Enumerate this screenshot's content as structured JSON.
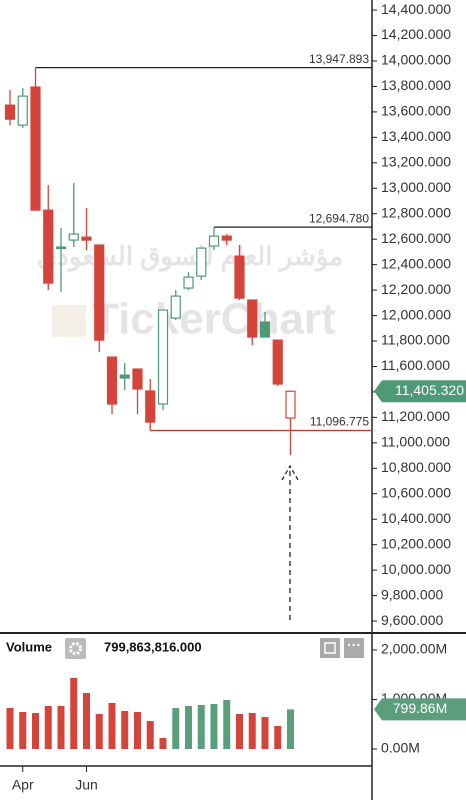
{
  "chart_data": [
    {
      "type": "candlestick",
      "watermark_brand": "TickerChart",
      "watermark_title": "مؤشر العام للسوق السعودي",
      "categories": [
        null,
        "Apr",
        null,
        null,
        null,
        null,
        "Jun",
        null,
        null,
        null,
        null,
        null,
        null,
        null,
        null,
        null,
        null,
        null,
        null,
        null,
        null,
        null,
        null
      ],
      "open": [
        13653,
        13496,
        13795,
        12828,
        12538,
        12593,
        12616,
        12554,
        11674,
        11532,
        11580,
        11407,
        11305,
        11980,
        12216,
        12310,
        12546,
        12624,
        12467,
        12122,
        11949,
        11807,
        11195
      ],
      "high": [
        13771,
        13787,
        13947.893,
        13025,
        12687,
        13041,
        12844,
        12554,
        11674,
        11627,
        11580,
        11501,
        12043,
        12200,
        12341,
        12530,
        12694.78,
        12640,
        12554,
        12122,
        12027,
        11807,
        11405.32
      ],
      "low": [
        13496,
        13473,
        12828,
        12200,
        12184,
        12538,
        12514,
        11713,
        11226,
        11415,
        11226,
        11096.775,
        11258,
        11965,
        12200,
        12279,
        12514,
        12554,
        12122,
        11768,
        11831,
        11446,
        10904
      ],
      "close": [
        13543,
        13724,
        12828,
        12255,
        12530,
        12640,
        12593,
        11807,
        11305,
        11509,
        11423,
        11163,
        12043,
        12153,
        12302,
        12530,
        12624,
        12593,
        12137,
        11831,
        11831,
        11462,
        11405.32
      ],
      "up_color": "#4f9a76",
      "down_color": "#d5443a",
      "ylim": [
        9514,
        14479
      ],
      "yticks": [
        {
          "value": 9600,
          "label": "9,600.000"
        },
        {
          "value": 9800,
          "label": "9,800.000"
        },
        {
          "value": 10000,
          "label": "10,000.000"
        },
        {
          "value": 10200,
          "label": "10,200.000"
        },
        {
          "value": 10400,
          "label": "10,400.000"
        },
        {
          "value": 10600,
          "label": "10,600.000"
        },
        {
          "value": 10800,
          "label": "10,800.000"
        },
        {
          "value": 11000,
          "label": "11,000.000"
        },
        {
          "value": 11200,
          "label": "11,200.000"
        },
        {
          "value": 11400,
          "label": "11,400.000"
        },
        {
          "value": 11600,
          "label": "11,600.000"
        },
        {
          "value": 11800,
          "label": "11,800.000"
        },
        {
          "value": 12000,
          "label": "12,000.000"
        },
        {
          "value": 12200,
          "label": "12,200.000"
        },
        {
          "value": 12400,
          "label": "12,400.000"
        },
        {
          "value": 12600,
          "label": "12,600.000"
        },
        {
          "value": 12800,
          "label": "12,800.000"
        },
        {
          "value": 13000,
          "label": "13,000.000"
        },
        {
          "value": 13200,
          "label": "13,200.000"
        },
        {
          "value": 13400,
          "label": "13,400.000"
        },
        {
          "value": 13600,
          "label": "13,600.000"
        },
        {
          "value": 13800,
          "label": "13,800.000"
        },
        {
          "value": 14000,
          "label": "14,000.000"
        },
        {
          "value": 14200,
          "label": "14,200.000"
        },
        {
          "value": 14400,
          "label": "14,400.000"
        }
      ],
      "hlines": [
        {
          "value": 13947.893,
          "label": "13,947.893",
          "color": "#222222"
        },
        {
          "value": 12694.78,
          "label": "12,694.780",
          "color": "#222222"
        },
        {
          "value": 11096.775,
          "label": "11,096.775",
          "color": "#c0392b"
        }
      ],
      "last_label": "11,405.320",
      "last_color": "#4f9a76"
    },
    {
      "type": "bar",
      "title": "Volume",
      "readout": "799,863,816.000",
      "values": [
        828,
        747,
        727,
        869,
        869,
        1434,
        1131,
        707,
        929,
        768,
        747,
        566,
        222,
        828,
        869,
        889,
        909,
        990,
        707,
        727,
        646,
        465,
        799.86
      ],
      "colors": [
        "#d5443a",
        "#d5443a",
        "#d5443a",
        "#d5443a",
        "#d5443a",
        "#d5443a",
        "#d5443a",
        "#d5443a",
        "#d5443a",
        "#d5443a",
        "#d5443a",
        "#d5443a",
        "#d5443a",
        "#5a9e7c",
        "#5a9e7c",
        "#5a9e7c",
        "#5a9e7c",
        "#5a9e7c",
        "#d5443a",
        "#d5443a",
        "#d5443a",
        "#d5443a",
        "#5a9e7c"
      ],
      "ylim": [
        0,
        2242
      ],
      "yticks": [
        {
          "value": 0,
          "label": "0.00M"
        },
        {
          "value": 1000,
          "label": "1,000.00M"
        },
        {
          "value": 2000,
          "label": "2,000.00M"
        }
      ],
      "last_label": "799.86M",
      "last_color": "#5a9e7c"
    }
  ]
}
